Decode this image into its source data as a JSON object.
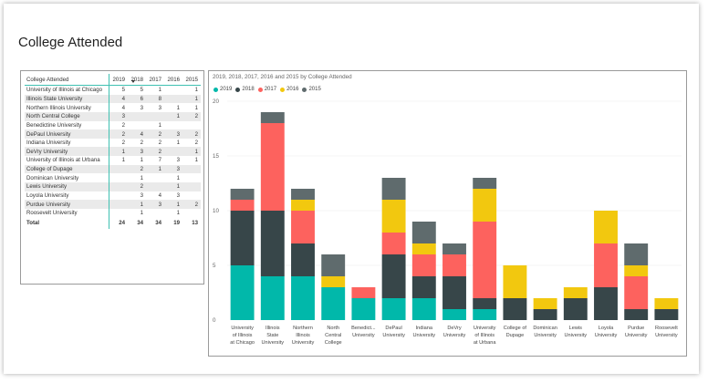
{
  "page": {
    "title": "College Attended"
  },
  "table": {
    "headers": [
      "College Attended",
      "2019",
      "2018",
      "2017",
      "2016",
      "2015"
    ],
    "rows": [
      {
        "name": "University of Illinois at Chicago",
        "values": [
          "5",
          "5",
          "1",
          "",
          "1"
        ]
      },
      {
        "name": "Illinois State University",
        "values": [
          "4",
          "6",
          "8",
          "",
          "1"
        ]
      },
      {
        "name": "Northern Illinois University",
        "values": [
          "4",
          "3",
          "3",
          "1",
          "1"
        ]
      },
      {
        "name": "North Central College",
        "values": [
          "3",
          "",
          "",
          "1",
          "2"
        ]
      },
      {
        "name": "Benedictine University",
        "values": [
          "2",
          "",
          "1",
          "",
          ""
        ]
      },
      {
        "name": "DePaul University",
        "values": [
          "2",
          "4",
          "2",
          "3",
          "2"
        ]
      },
      {
        "name": "Indiana University",
        "values": [
          "2",
          "2",
          "2",
          "1",
          "2"
        ]
      },
      {
        "name": "DeVry University",
        "values": [
          "1",
          "3",
          "2",
          "",
          "1"
        ]
      },
      {
        "name": "University of Illinois at Urbana",
        "values": [
          "1",
          "1",
          "7",
          "3",
          "1"
        ]
      },
      {
        "name": "College of Dupage",
        "values": [
          "",
          "2",
          "1",
          "3",
          ""
        ]
      },
      {
        "name": "Dominican University",
        "values": [
          "",
          "1",
          "",
          "1",
          ""
        ]
      },
      {
        "name": "Lewis University",
        "values": [
          "",
          "2",
          "",
          "1",
          ""
        ]
      },
      {
        "name": "Loyola University",
        "values": [
          "",
          "3",
          "4",
          "3",
          ""
        ]
      },
      {
        "name": "Purdue University",
        "values": [
          "",
          "1",
          "3",
          "1",
          "2"
        ]
      },
      {
        "name": "Roosevelt University",
        "values": [
          "",
          "1",
          "",
          "1",
          ""
        ]
      }
    ],
    "total": {
      "name": "Total",
      "values": [
        "24",
        "34",
        "34",
        "19",
        "13"
      ]
    }
  },
  "chart": {
    "title": "2019, 2018, 2017, 2016 and 2015 by College Attended"
  },
  "chart_data": {
    "type": "bar",
    "stacked": true,
    "title": "2019, 2018, 2017, 2016 and 2015 by College Attended",
    "categories": [
      [
        "University",
        "of Illinois",
        "at Chicago"
      ],
      [
        "Illinois",
        "State",
        "University"
      ],
      [
        "Northern",
        "Illinois",
        "University"
      ],
      [
        "North",
        "Central",
        "College"
      ],
      [
        "Benedict...",
        "University"
      ],
      [
        "DePaul",
        "University"
      ],
      [
        "Indiana",
        "University"
      ],
      [
        "DeVry",
        "University"
      ],
      [
        "University",
        "of Illinois",
        "at Urbana"
      ],
      [
        "College of",
        "Dupage"
      ],
      [
        "Dominican",
        "University"
      ],
      [
        "Lewis",
        "University"
      ],
      [
        "Loyola",
        "University"
      ],
      [
        "Purdue",
        "University"
      ],
      [
        "Roosevelt",
        "University"
      ]
    ],
    "series": [
      {
        "name": "2019",
        "color": "#01b8aa",
        "values": [
          5,
          4,
          4,
          3,
          2,
          2,
          2,
          1,
          1,
          0,
          0,
          0,
          0,
          0,
          0
        ]
      },
      {
        "name": "2018",
        "color": "#374649",
        "values": [
          5,
          6,
          3,
          0,
          0,
          4,
          2,
          3,
          1,
          2,
          1,
          2,
          3,
          1,
          1
        ]
      },
      {
        "name": "2017",
        "color": "#fd625e",
        "values": [
          1,
          8,
          3,
          0,
          1,
          2,
          2,
          2,
          7,
          0,
          0,
          0,
          4,
          3,
          0
        ]
      },
      {
        "name": "2016",
        "color": "#f2c80f",
        "values": [
          0,
          0,
          1,
          1,
          0,
          3,
          1,
          0,
          3,
          3,
          1,
          1,
          3,
          1,
          1
        ]
      },
      {
        "name": "2015",
        "color": "#5f6b6d",
        "values": [
          1,
          1,
          1,
          2,
          0,
          2,
          2,
          1,
          1,
          0,
          0,
          0,
          0,
          2,
          0
        ]
      }
    ],
    "ylim": [
      0,
      20
    ],
    "yticks": [
      "0",
      "5",
      "10",
      "15",
      "20"
    ],
    "xlabel": "",
    "ylabel": "",
    "legend": "top-left"
  }
}
